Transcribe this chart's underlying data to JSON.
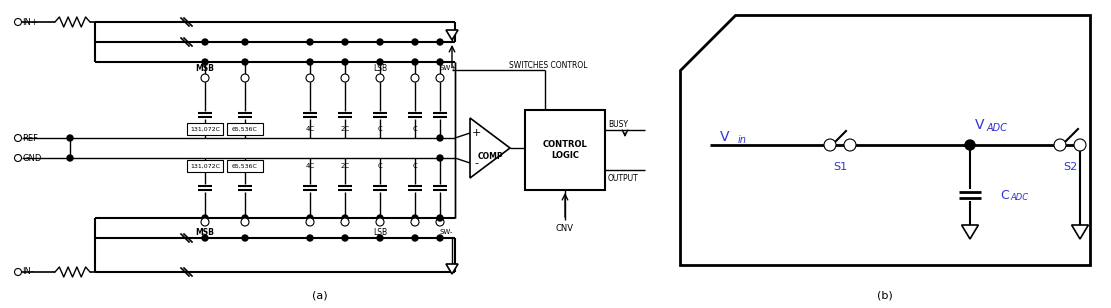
{
  "figure_width": 11.11,
  "figure_height": 3.08,
  "dpi": 100,
  "bg_color": "#ffffff",
  "caption_a": "(a)",
  "caption_b": "(b)",
  "label_switches_control": "SWITCHES CONTROL",
  "label_busy": "BUSY",
  "label_output": "OUTPUT",
  "label_cnv": "CNV",
  "label_comp": "COMP",
  "label_control_logic": "CONTROL\nLOGIC",
  "label_msb": "MSB",
  "label_lsb": "LSB",
  "label_swplus": "SW+",
  "label_swminus": "SW-",
  "label_ref": "REF",
  "label_gnd": "GND",
  "label_inplus": "IN+",
  "label_inminus": "IN-",
  "label_131072c": "131,072C",
  "label_65536c": "65,536C",
  "label_4c": "4C",
  "label_2c": "2C",
  "label_c1": "C",
  "label_c2": "C",
  "label_vin": "V",
  "label_in_sub": "in",
  "label_vadc": "V",
  "label_adc_sub": "ADC",
  "label_s1": "S1",
  "label_s2": "S2",
  "label_cadc": "C",
  "label_cadc_sub": "ADC",
  "line_color": "#000000",
  "gray_color": "#555555",
  "text_color": "#000000",
  "blue_text": "#3333cc"
}
